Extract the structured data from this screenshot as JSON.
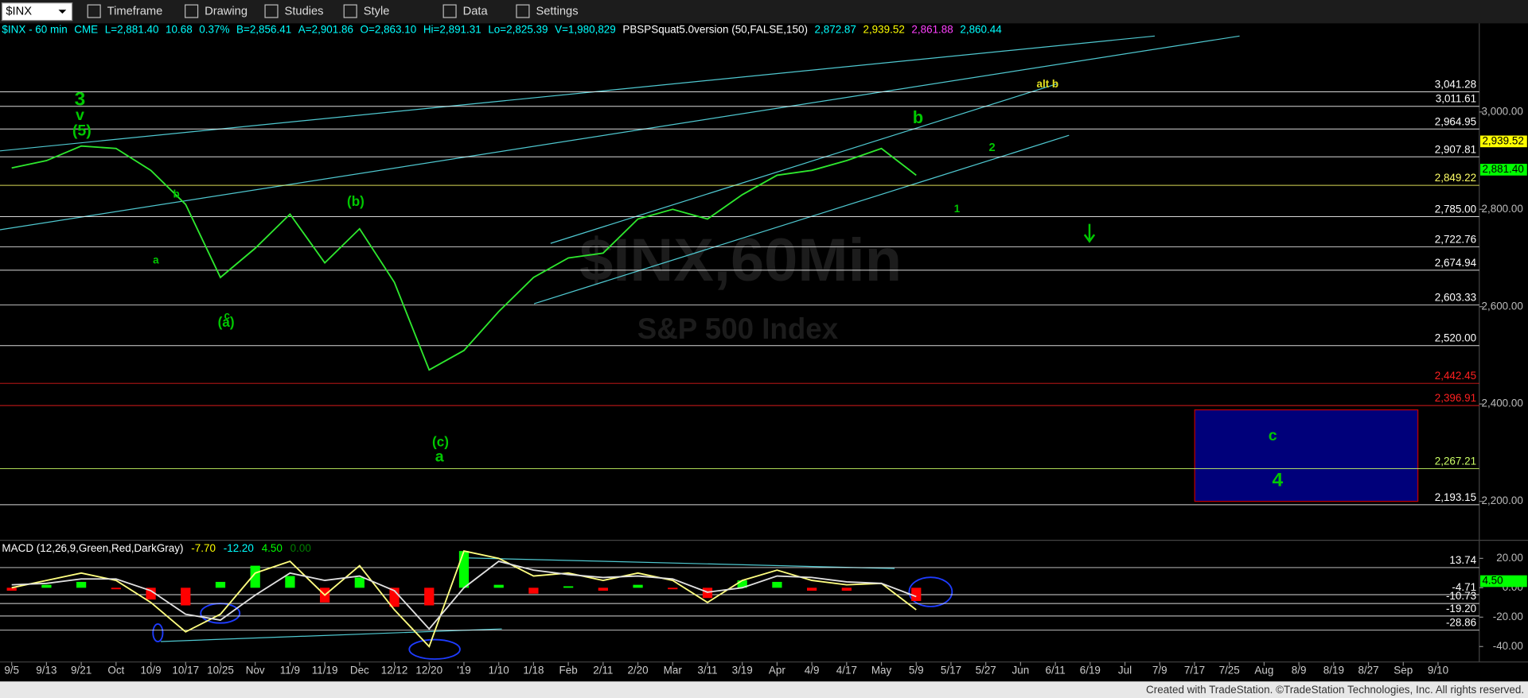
{
  "toolbar": {
    "symbol": "$INX",
    "menus": [
      "Timeframe",
      "Drawing",
      "Studies",
      "Style",
      "Data",
      "Settings"
    ]
  },
  "chart_data": [
    {
      "type": "line",
      "title": "$INX,60Min",
      "subtitle": "S&P 500 Index",
      "header": [
        {
          "text": "$INX - 60 min",
          "color": "#00ffff"
        },
        {
          "text": "CME",
          "color": "#00ffff"
        },
        {
          "text": "L=2,881.40",
          "color": "#00ffff"
        },
        {
          "text": "10.68",
          "color": "#00ffff"
        },
        {
          "text": "0.37%",
          "color": "#00ffff"
        },
        {
          "text": "B=2,856.41",
          "color": "#00ffff"
        },
        {
          "text": "A=2,901.86",
          "color": "#00ffff"
        },
        {
          "text": "O=2,863.10",
          "color": "#00ffff"
        },
        {
          "text": "Hi=2,891.31",
          "color": "#00ffff"
        },
        {
          "text": "Lo=2,825.39",
          "color": "#00ffff"
        },
        {
          "text": "V=1,980,829",
          "color": "#00ffff"
        },
        {
          "text": "PBSPSquat5.0version (50,FALSE,150)",
          "color": "#ffffff"
        },
        {
          "text": "2,872.87",
          "color": "#00ffff"
        },
        {
          "text": "2,939.52",
          "color": "#ffff00"
        },
        {
          "text": "2,861.88",
          "color": "#ff40ff"
        },
        {
          "text": "2,860.44",
          "color": "#00ffff"
        }
      ],
      "categories": [
        "9/5",
        "9/13",
        "9/21",
        "Oct",
        "10/9",
        "10/17",
        "10/25",
        "Nov",
        "11/9",
        "11/19",
        "Dec",
        "12/12",
        "12/20",
        "'19",
        "1/10",
        "1/18",
        "Feb",
        "2/11",
        "2/20",
        "Mar",
        "3/11",
        "3/19",
        "Apr",
        "4/9",
        "4/17",
        "May",
        "5/9",
        "5/17",
        "5/27",
        "Jun",
        "6/11",
        "6/19",
        "Jul",
        "7/9",
        "7/17",
        "7/25",
        "Aug",
        "8/9",
        "8/19",
        "8/27",
        "Sep",
        "9/10"
      ],
      "series": [
        {
          "color": "#2ee82e",
          "values": [
            2885,
            2900,
            2930,
            2925,
            2880,
            2810,
            2660,
            2720,
            2790,
            2690,
            2760,
            2650,
            2470,
            2510,
            2590,
            2660,
            2700,
            2710,
            2780,
            2800,
            2780,
            2830,
            2870,
            2880,
            2900,
            2925,
            2870,
            null,
            null,
            null,
            null,
            null,
            null,
            null,
            null,
            null,
            null,
            null,
            null,
            null,
            null,
            null
          ]
        }
      ],
      "ylim": [
        2120,
        3182
      ],
      "yticks": [
        {
          "value": 2200,
          "label": "2,200.00"
        },
        {
          "value": 2400,
          "label": "2,400.00"
        },
        {
          "value": 2600,
          "label": "2,600.00"
        },
        {
          "value": 2800,
          "label": "2,800.00"
        },
        {
          "value": 3000,
          "label": "3,000.00"
        }
      ],
      "levels": [
        {
          "value": 3041.28,
          "label": "3,041.28",
          "color": "#ffffff"
        },
        {
          "value": 3011.61,
          "label": "3,011.61",
          "color": "#ffffff"
        },
        {
          "value": 2964.95,
          "label": "2,964.95",
          "color": "#ffffff"
        },
        {
          "value": 2907.81,
          "label": "2,907.81",
          "color": "#ffffff"
        },
        {
          "value": 2849.22,
          "label": "2,849.22",
          "color": "#ffff66"
        },
        {
          "value": 2785.0,
          "label": "2,785.00",
          "color": "#ffffff"
        },
        {
          "value": 2722.76,
          "label": "2,722.76",
          "color": "#ffffff"
        },
        {
          "value": 2674.94,
          "label": "2,674.94",
          "color": "#ffffff"
        },
        {
          "value": 2603.33,
          "label": "2,603.33",
          "color": "#ffffff"
        },
        {
          "value": 2520.0,
          "label": "2,520.00",
          "color": "#ffffff"
        },
        {
          "value": 2442.45,
          "label": "2,442.45",
          "color": "#ff2020"
        },
        {
          "value": 2396.91,
          "label": "2,396.91",
          "color": "#ff2020"
        },
        {
          "value": 2267.21,
          "label": "2,267.21",
          "color": "#ccff66"
        },
        {
          "value": 2193.15,
          "label": "2,193.15",
          "color": "#ffffff"
        }
      ],
      "price_tags": [
        {
          "value": 2939.52,
          "label": "2,939.52",
          "color": "#ffff00"
        },
        {
          "value": 2881.4,
          "label": "2,881.40",
          "color": "#00ff00"
        }
      ],
      "annotations": [
        {
          "text": "3",
          "color": "#00c800"
        },
        {
          "text": "v",
          "color": "#00c800"
        },
        {
          "text": "(5)",
          "color": "#00c800"
        },
        {
          "text": "b",
          "color": "#00c800"
        },
        {
          "text": "a",
          "color": "#00c800"
        },
        {
          "text": "c",
          "color": "#00c800"
        },
        {
          "text": "(a)",
          "color": "#00c800"
        },
        {
          "text": "(b)",
          "color": "#00c800"
        },
        {
          "text": "(c)",
          "color": "#00c800"
        },
        {
          "text": "a",
          "color": "#00c800"
        },
        {
          "text": "b",
          "color": "#00c800"
        },
        {
          "text": "2",
          "color": "#00c800"
        },
        {
          "text": "1",
          "color": "#00c800"
        },
        {
          "text": "alt b",
          "color": "#e0e020"
        },
        {
          "text": "c",
          "color": "#00c800"
        },
        {
          "text": "4",
          "color": "#00c800"
        }
      ]
    },
    {
      "type": "line",
      "title": "MACD (12,26,9,Green,Red,DarkGray)",
      "readouts": [
        {
          "text": "-7.70",
          "color": "#ffff00"
        },
        {
          "text": "-12.20",
          "color": "#00ffff"
        },
        {
          "text": "4.50",
          "color": "#00ff00"
        },
        {
          "text": "0.00",
          "color": "#008000"
        }
      ],
      "series": [
        {
          "color": "#ffff80",
          "values": [
            0,
            5,
            10,
            5,
            -10,
            -30,
            -18,
            10,
            18,
            -5,
            15,
            -15,
            -40,
            25,
            20,
            8,
            10,
            5,
            10,
            5,
            -10,
            5,
            12,
            5,
            2,
            3,
            -15,
            null,
            null,
            null,
            null,
            null,
            null,
            null,
            null,
            null,
            null,
            null,
            null,
            null,
            null,
            null
          ]
        },
        {
          "color": "#e0e0e0",
          "values": [
            2,
            3,
            6,
            6,
            -2,
            -18,
            -22,
            -5,
            10,
            5,
            8,
            -2,
            -28,
            0,
            18,
            12,
            9,
            7,
            8,
            6,
            -3,
            0,
            8,
            7,
            4,
            3,
            -6,
            null,
            null,
            null,
            null,
            null,
            null,
            null,
            null,
            null,
            null,
            null,
            null,
            null,
            null,
            null
          ]
        }
      ],
      "histogram": {
        "up_color": "#00ff00",
        "down_color": "#ff0000",
        "values": [
          -2,
          2,
          4,
          -1,
          -8,
          -12,
          4,
          15,
          8,
          -10,
          7,
          -13,
          -12,
          25,
          2,
          -4,
          1,
          -2,
          2,
          -1,
          -7,
          5,
          4,
          -2,
          -2,
          0,
          -9,
          null,
          null,
          null,
          null,
          null,
          null,
          null,
          null,
          null,
          null,
          null,
          null,
          null,
          null,
          null
        ]
      },
      "ylim": [
        -50.5,
        32.3
      ],
      "yticks": [
        {
          "value": 20,
          "label": "20.00"
        },
        {
          "value": 0,
          "label": "0.00"
        },
        {
          "value": -20,
          "label": "-20.00"
        },
        {
          "value": -40,
          "label": "-40.00"
        }
      ],
      "levels": [
        {
          "value": 13.74,
          "label": "13.74",
          "color": "#ffffff"
        },
        {
          "value": -4.71,
          "label": "-4.71",
          "color": "#ffffff"
        },
        {
          "value": -10.73,
          "label": "-10.73",
          "color": "#ffffff"
        },
        {
          "value": -19.2,
          "label": "-19.20",
          "color": "#ffffff"
        },
        {
          "value": -28.86,
          "label": "-28.86",
          "color": "#ffffff"
        }
      ],
      "price_tags": [
        {
          "value": 4.5,
          "label": "4.50",
          "color": "#00ff00"
        }
      ]
    }
  ],
  "footer": "Created with TradeStation. ©TradeStation Technologies, Inc. All rights reserved."
}
